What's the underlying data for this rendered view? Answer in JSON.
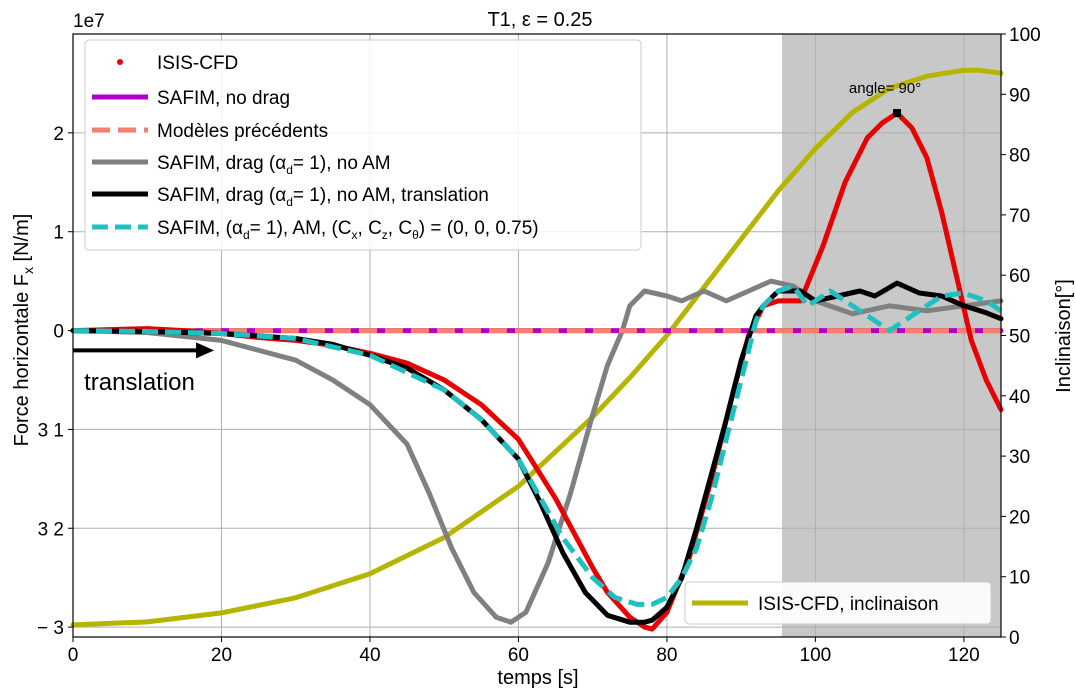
{
  "chart_data": {
    "type": "line",
    "title": "T1, ε = 0.25",
    "xlabel": "temps [s]",
    "ylabel_left": "Force horizontale  F",
    "ylabel_left_sub": "x",
    "ylabel_left_unit": " [N/m]",
    "ylabel_right": "Inclinaison[°]",
    "offset_text": "1e7",
    "xlim": [
      0,
      125
    ],
    "ylim_left": [
      -3.1,
      3.0
    ],
    "ylim_right": [
      0,
      100
    ],
    "grid": true,
    "shaded_region": {
      "x_start": 95.5,
      "x_end": 125,
      "color": "#c8c8c8"
    },
    "x_ticks": [
      "0",
      "20",
      "40",
      "60",
      "80",
      "100",
      "120"
    ],
    "x_tick_values": [
      0,
      20,
      40,
      60,
      80,
      100,
      120
    ],
    "y_left_ticks": [
      {
        "value": 2,
        "label": "2"
      },
      {
        "value": 1,
        "label": "1"
      },
      {
        "value": 0,
        "label": "0"
      },
      {
        "value": -1,
        "label": "3 1"
      },
      {
        "value": -2,
        "label": "3 2"
      },
      {
        "value": -3,
        "label": "− 3"
      }
    ],
    "y_right_ticks": [
      "0",
      "10",
      "20",
      "30",
      "40",
      "50",
      "60",
      "70",
      "80",
      "90",
      "100"
    ],
    "y_right_tick_values": [
      0,
      10,
      20,
      30,
      40,
      50,
      60,
      70,
      80,
      90,
      100
    ],
    "annotations": [
      {
        "text": "angle= 90°",
        "x": 111,
        "y": 2.2
      },
      {
        "text": "translation",
        "x": 1.5,
        "y": -0.52
      }
    ],
    "translation_arrow": {
      "x_start": 0,
      "x_end": 19,
      "y": -0.2
    },
    "series": [
      {
        "name": "ISIS-CFD",
        "axis": "left",
        "color": "#e60000",
        "style": "dots",
        "x": [
          0,
          5,
          10,
          15,
          20,
          25,
          30,
          35,
          40,
          45,
          50,
          55,
          60,
          65,
          70,
          72,
          75,
          77,
          78,
          80,
          83,
          86,
          89,
          91,
          93,
          95,
          98,
          101,
          104,
          107,
          109,
          111,
          113,
          115,
          117,
          119,
          121,
          123,
          125
        ],
        "y": [
          0,
          0.01,
          0.02,
          0.0,
          -0.03,
          -0.07,
          -0.1,
          -0.15,
          -0.23,
          -0.33,
          -0.5,
          -0.75,
          -1.1,
          -1.7,
          -2.4,
          -2.65,
          -2.9,
          -3.0,
          -3.02,
          -2.85,
          -2.3,
          -1.5,
          -0.6,
          -0.05,
          0.25,
          0.3,
          0.3,
          0.85,
          1.5,
          1.95,
          2.1,
          2.2,
          2.05,
          1.75,
          1.2,
          0.55,
          -0.1,
          -0.5,
          -0.8
        ]
      },
      {
        "name": "SAFIM, no drag",
        "axis": "left",
        "color": "#b000c8",
        "style": "solid",
        "x": [
          0,
          125
        ],
        "y": [
          0,
          0
        ]
      },
      {
        "name": "Modèles précédents",
        "axis": "left",
        "color": "#f08070",
        "style": "dashed",
        "x": [
          0,
          125
        ],
        "y": [
          0,
          0
        ]
      },
      {
        "name": "SAFIM, drag (α",
        "name_sub": "d",
        "name_tail": "= 1), no AM",
        "axis": "left",
        "color": "#808080",
        "style": "solid",
        "x": [
          0,
          10,
          20,
          30,
          35,
          40,
          45,
          48,
          51,
          54,
          57,
          59,
          61,
          64,
          67,
          70,
          72,
          74,
          75,
          77,
          80,
          82,
          85,
          88,
          91,
          94,
          97,
          100,
          105,
          110,
          115,
          120,
          125
        ],
        "y": [
          0,
          -0.02,
          -0.1,
          -0.3,
          -0.5,
          -0.75,
          -1.15,
          -1.65,
          -2.2,
          -2.65,
          -2.9,
          -2.95,
          -2.85,
          -2.35,
          -1.65,
          -0.85,
          -0.35,
          0.0,
          0.25,
          0.4,
          0.35,
          0.3,
          0.4,
          0.3,
          0.4,
          0.5,
          0.45,
          0.3,
          0.17,
          0.25,
          0.2,
          0.25,
          0.3
        ]
      },
      {
        "name": "SAFIM, drag (α",
        "name_sub": "d",
        "name_tail": "= 1), no AM, translation",
        "axis": "left",
        "color": "#000000",
        "style": "solid",
        "x": [
          0,
          10,
          20,
          30,
          35,
          40,
          45,
          50,
          55,
          60,
          63,
          66,
          69,
          72,
          75,
          77,
          78,
          80,
          82,
          84,
          86,
          88,
          90,
          92,
          93,
          95,
          98,
          100,
          103,
          106,
          108,
          111,
          114,
          117,
          120,
          123,
          125
        ],
        "y": [
          0,
          -0.01,
          -0.03,
          -0.08,
          -0.14,
          -0.25,
          -0.38,
          -0.6,
          -0.9,
          -1.3,
          -1.75,
          -2.25,
          -2.65,
          -2.88,
          -2.95,
          -2.95,
          -2.93,
          -2.8,
          -2.5,
          -2.0,
          -1.45,
          -0.9,
          -0.3,
          0.15,
          0.25,
          0.4,
          0.4,
          0.3,
          0.35,
          0.4,
          0.35,
          0.48,
          0.38,
          0.35,
          0.25,
          0.18,
          0.12
        ]
      },
      {
        "name": "SAFIM, (α",
        "name_sub": "d",
        "name_tail": "= 1), AM, (C",
        "name_extra": "x, z, θ",
        "name_full_tail": "= 1), AM, (Cx, Cz, Cθ) = (0, 0, 0.75)",
        "axis": "left",
        "color": "#20c0c0",
        "style": "dashed",
        "x": [
          0,
          10,
          20,
          30,
          40,
          50,
          55,
          60,
          63,
          66,
          70,
          73,
          76,
          78,
          80,
          82,
          84,
          86,
          88,
          90,
          92,
          93,
          95,
          97,
          99,
          102,
          106,
          110,
          113,
          117,
          120,
          123,
          125
        ],
        "y": [
          0,
          -0.01,
          -0.03,
          -0.08,
          -0.25,
          -0.6,
          -0.9,
          -1.3,
          -1.7,
          -2.1,
          -2.5,
          -2.7,
          -2.77,
          -2.77,
          -2.7,
          -2.5,
          -2.2,
          -1.7,
          -1.1,
          -0.5,
          0.1,
          0.25,
          0.4,
          0.45,
          0.25,
          0.4,
          0.2,
          0.0,
          0.15,
          0.35,
          0.38,
          0.3,
          0.2
        ]
      },
      {
        "name": "ISIS-CFD, inclinaison",
        "axis": "right",
        "color": "#b5b500",
        "style": "solid",
        "x": [
          0,
          10,
          20,
          30,
          40,
          50,
          60,
          70,
          75,
          80,
          85,
          90,
          95,
          100,
          105,
          110,
          115,
          120,
          122,
          125
        ],
        "y": [
          2,
          2.5,
          4,
          6.5,
          10.5,
          16.5,
          25,
          36.5,
          43,
          50,
          58,
          66,
          74,
          81,
          87,
          91,
          93,
          94,
          94,
          93.5
        ]
      }
    ],
    "legend_upper": {
      "position": "upper-left",
      "entries": [
        "ISIS-CFD",
        "SAFIM, no drag",
        "Modèles précédents",
        "SAFIM, drag (α",
        "SAFIM, drag (α",
        "SAFIM, (α"
      ]
    },
    "legend_lower": {
      "position": "lower-right",
      "entries": [
        "ISIS-CFD, inclinaison"
      ]
    }
  }
}
